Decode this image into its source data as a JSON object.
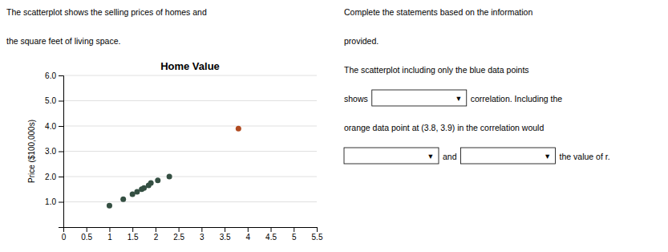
{
  "chart_data": {
    "type": "scatter",
    "title": "Home Value",
    "ylabel": "Price ($100,000s)",
    "xlim": [
      0,
      5.5
    ],
    "ylim": [
      0,
      6.0
    ],
    "xticks": [
      0,
      0.5,
      1,
      1.5,
      2,
      2.5,
      3,
      3.5,
      4,
      4.5,
      5,
      5.5
    ],
    "yticks": [
      {
        "value": 1.0,
        "label": "1.0"
      },
      {
        "value": 2.0,
        "label": "2.0"
      },
      {
        "value": 3.0,
        "label": "3.0"
      },
      {
        "value": 4.0,
        "label": "4.0"
      },
      {
        "value": 5.0,
        "label": "5.0"
      },
      {
        "value": 6.0,
        "label": "6.0"
      }
    ],
    "grid": "y",
    "series": [
      {
        "color": "#344f42",
        "x": [
          1.0,
          1.3,
          1.5,
          1.6,
          1.7,
          1.75,
          1.85,
          1.9,
          2.05,
          2.3
        ],
        "values": [
          0.85,
          1.1,
          1.3,
          1.4,
          1.5,
          1.55,
          1.65,
          1.75,
          1.85,
          2.0
        ]
      },
      {
        "color": "#b04a20",
        "x": [
          3.8
        ],
        "values": [
          3.9
        ]
      }
    ],
    "annotations": [
      {
        "lines": [
          [
            {
              "text": "The scatterplot shows the selling prices of homes and"
            }
          ],
          [
            {
              "text": "the square feet of living space."
            }
          ]
        ]
      },
      {
        "lines": [
          [
            {
              "text": "Complete the statements based on the information"
            }
          ],
          [
            {
              "text": "provided."
            }
          ],
          [
            {
              "text": "The scatterplot including only the blue data points"
            }
          ],
          [
            {
              "text": "shows"
            },
            {
              "dropdown": "▾"
            },
            {
              "text": "correlation. Including the"
            }
          ],
          [
            {
              "text": "orange data point at (3.8, 3.9) in the correlation would"
            }
          ],
          [
            {
              "dropdown": "▾"
            },
            {
              "text": "and"
            },
            {
              "dropdown": "▾"
            },
            {
              "text": "the value of r."
            }
          ]
        ]
      }
    ]
  }
}
